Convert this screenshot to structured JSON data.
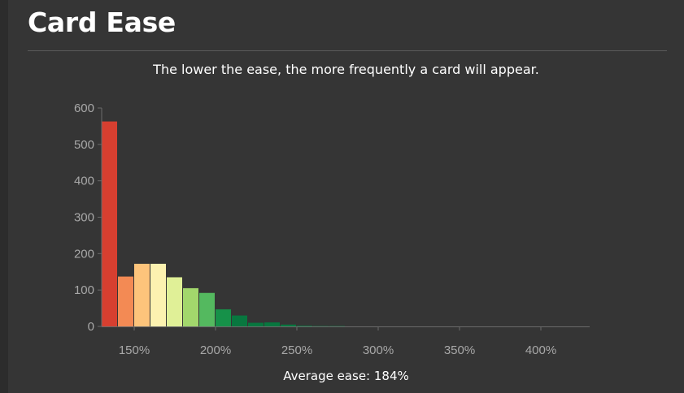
{
  "header": {
    "title": "Card Ease",
    "subtitle": "The lower the ease, the more frequently a card will appear."
  },
  "footer": {
    "average_label": "Average ease:",
    "average_value": "184%"
  },
  "colors": {
    "background": "#353535",
    "axis": "#6a6a6a",
    "tick_text": "#a8a8a8"
  },
  "chart_data": {
    "type": "bar",
    "title": "",
    "xlabel": "",
    "ylabel": "",
    "ylim": [
      0,
      600
    ],
    "xlim": [
      130,
      430
    ],
    "yticks": [
      0,
      100,
      200,
      300,
      400,
      500,
      600
    ],
    "xticks": [
      {
        "value": 150,
        "label": "150%"
      },
      {
        "value": 200,
        "label": "200%"
      },
      {
        "value": 250,
        "label": "250%"
      },
      {
        "value": 300,
        "label": "300%"
      },
      {
        "value": 350,
        "label": "350%"
      },
      {
        "value": 400,
        "label": "400%"
      }
    ],
    "bin_width": 10,
    "bins": [
      {
        "start": 130,
        "value": 563,
        "color": "#d73f30"
      },
      {
        "start": 140,
        "value": 137,
        "color": "#f38a54"
      },
      {
        "start": 150,
        "value": 172,
        "color": "#fdc47b"
      },
      {
        "start": 160,
        "value": 172,
        "color": "#fcf2b0"
      },
      {
        "start": 170,
        "value": 135,
        "color": "#e0f097"
      },
      {
        "start": 180,
        "value": 105,
        "color": "#a2d76c"
      },
      {
        "start": 190,
        "value": 92,
        "color": "#54b95f"
      },
      {
        "start": 200,
        "value": 47,
        "color": "#169149"
      },
      {
        "start": 210,
        "value": 30,
        "color": "#08773f"
      },
      {
        "start": 220,
        "value": 10,
        "color": "#08773f"
      },
      {
        "start": 230,
        "value": 11,
        "color": "#08773f"
      },
      {
        "start": 240,
        "value": 5,
        "color": "#08773f"
      },
      {
        "start": 250,
        "value": 2,
        "color": "#08773f"
      },
      {
        "start": 260,
        "value": 1,
        "color": "#08773f"
      },
      {
        "start": 270,
        "value": 1,
        "color": "#08773f"
      }
    ],
    "grid": false,
    "legend": "none"
  }
}
